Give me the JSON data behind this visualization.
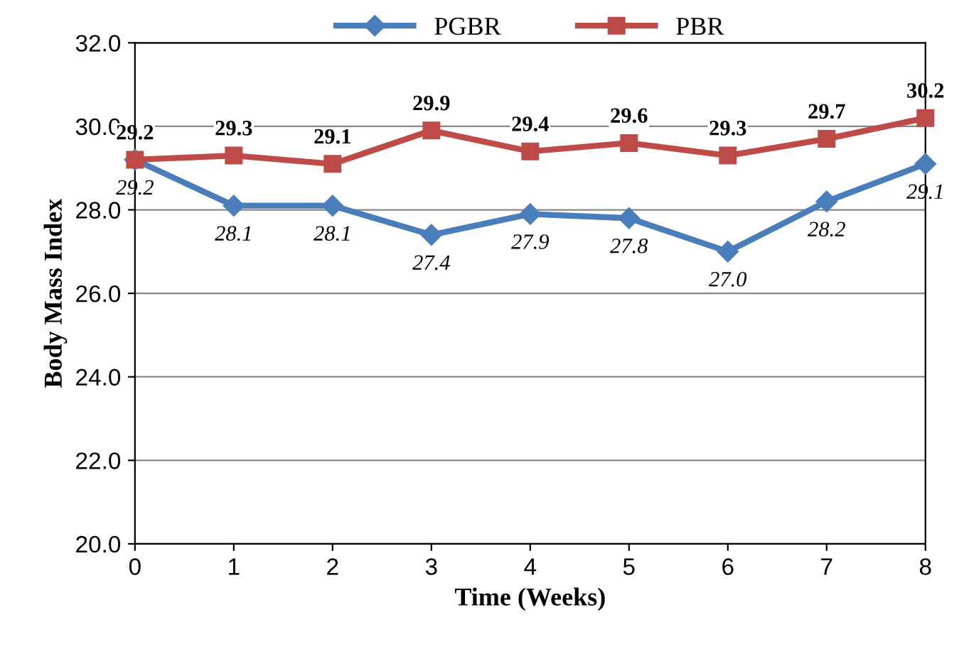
{
  "chart_data": {
    "type": "line",
    "xlabel": "Time (Weeks)",
    "ylabel": "Body Mass Index",
    "x": [
      0,
      1,
      2,
      3,
      4,
      5,
      6,
      7,
      8
    ],
    "series": [
      {
        "name": "PGBR",
        "color": "#4a7ebb",
        "marker": "diamond",
        "values": [
          29.2,
          28.1,
          28.1,
          27.4,
          27.9,
          27.8,
          27.0,
          28.2,
          29.1
        ],
        "value_labels": [
          "29.2",
          "28.1",
          "28.1",
          "27.4",
          "27.9",
          "27.8",
          "27.0",
          "28.2",
          "29.1"
        ]
      },
      {
        "name": "PBR",
        "color": "#be4b48",
        "marker": "square",
        "values": [
          29.2,
          29.3,
          29.1,
          29.9,
          29.4,
          29.6,
          29.3,
          29.7,
          30.2
        ],
        "value_labels": [
          "29.2",
          "29.3",
          "29.1",
          "29.9",
          "29.4",
          "29.6",
          "29.3",
          "29.7",
          "30.2"
        ]
      }
    ],
    "xlim": [
      0,
      8
    ],
    "xticks": [
      0,
      1,
      2,
      3,
      4,
      5,
      6,
      7,
      8
    ],
    "ylim": [
      20,
      32
    ],
    "yticks": [
      {
        "value": 20,
        "label": "20.0"
      },
      {
        "value": 22,
        "label": "22.0"
      },
      {
        "value": 24,
        "label": "24.0"
      },
      {
        "value": 26,
        "label": "26.0"
      },
      {
        "value": 28,
        "label": "28.0"
      },
      {
        "value": 30,
        "label": "30.0"
      },
      {
        "value": 32,
        "label": "32.0"
      }
    ],
    "grid": "y",
    "legend": "top",
    "line_style": "solid"
  }
}
